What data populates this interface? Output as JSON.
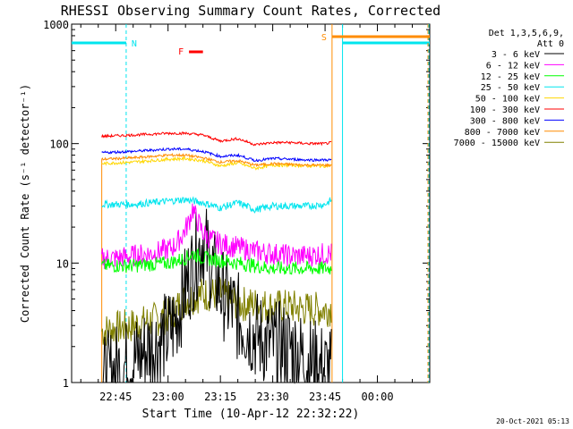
{
  "chart_data": {
    "type": "line",
    "title": "RHESSI Observing Summary Count Rates, Corrected",
    "xlabel": "Start Time (10-Apr-12 22:32:22)",
    "ylabel": "Corrected Count Rate (s⁻¹ detector⁻¹)",
    "y_scale": "log",
    "ylim": [
      1,
      1000
    ],
    "xlim": [
      "22:32:22",
      "00:15"
    ],
    "x_ticks": [
      "22:45",
      "23:00",
      "23:15",
      "23:30",
      "23:45",
      "00:00"
    ],
    "y_ticks": [
      "1",
      "10",
      "100",
      "1000"
    ],
    "legend_header": [
      "Det 1,3,5,6,9,",
      "Att 0"
    ],
    "legend_placement": "top-right",
    "footer_date": "20-Oct-2021 05:13",
    "flags": [
      {
        "letter": "N",
        "color": "#00e5ee",
        "desc": "night segments",
        "segments": [
          [
            "22:32:22",
            "22:48"
          ],
          [
            "23:50",
            "00:15"
          ]
        ]
      },
      {
        "letter": "S",
        "color": "#ff8c00",
        "desc": "SAA",
        "segments": [
          [
            "23:47",
            "00:15"
          ]
        ]
      },
      {
        "letter": "F",
        "color": "#ff0000",
        "desc": "flare",
        "segments": [
          [
            "23:06",
            "23:10"
          ]
        ]
      }
    ],
    "data_start": "22:41",
    "data_end": "23:47",
    "series": [
      {
        "name": "3 - 6 keV",
        "color": "#000000",
        "x": [
          "22:41",
          "22:45",
          "22:50",
          "22:55",
          "23:00",
          "23:02",
          "23:04",
          "23:06",
          "23:08",
          "23:10",
          "23:12",
          "23:15",
          "23:20",
          "23:25",
          "23:30",
          "23:35",
          "23:40",
          "23:45",
          "23:47"
        ],
        "y": [
          1,
          1.3,
          1.5,
          2,
          2.5,
          3.2,
          5,
          7.5,
          11,
          16,
          10,
          6,
          3.5,
          2.5,
          2,
          2,
          1.5,
          1.3,
          1.2
        ]
      },
      {
        "name": "6 - 12 keV",
        "color": "#ff00ff",
        "x": [
          "22:41",
          "22:45",
          "22:50",
          "22:55",
          "23:00",
          "23:02",
          "23:04",
          "23:06",
          "23:07",
          "23:08",
          "23:10",
          "23:12",
          "23:15",
          "23:20",
          "23:25",
          "23:30",
          "23:35",
          "23:40",
          "23:45",
          "23:47"
        ],
        "y": [
          11,
          11,
          11.5,
          12,
          13,
          14,
          17,
          22,
          29,
          24,
          18,
          16,
          14.5,
          13.5,
          12.5,
          12,
          11.5,
          11.5,
          12,
          12
        ]
      },
      {
        "name": "12 - 25 keV",
        "color": "#00ff00",
        "x": [
          "22:41",
          "22:50",
          "23:00",
          "23:05",
          "23:07",
          "23:10",
          "23:15",
          "23:20",
          "23:30",
          "23:40",
          "23:47"
        ],
        "y": [
          9.5,
          9.5,
          10,
          11,
          12,
          11,
          10.5,
          10,
          9,
          9,
          9
        ]
      },
      {
        "name": "25 - 50 keV",
        "color": "#00e5ee",
        "x": [
          "22:41",
          "22:50",
          "23:00",
          "23:05",
          "23:10",
          "23:15",
          "23:20",
          "23:25",
          "23:30",
          "23:35",
          "23:40",
          "23:45",
          "23:47"
        ],
        "y": [
          31,
          31,
          33,
          34,
          32,
          29,
          32,
          28,
          30,
          30,
          30,
          31,
          34
        ]
      },
      {
        "name": "50 - 100 keV",
        "color": "#ffd700",
        "x": [
          "22:41",
          "22:50",
          "23:00",
          "23:05",
          "23:10",
          "23:15",
          "23:20",
          "23:25",
          "23:30",
          "23:35",
          "23:40",
          "23:45",
          "23:47"
        ],
        "y": [
          68,
          70,
          74,
          75,
          72,
          65,
          69,
          62,
          66,
          66,
          65,
          65,
          66
        ]
      },
      {
        "name": "100 - 300 keV",
        "color": "#ff0000",
        "x": [
          "22:41",
          "22:50",
          "23:00",
          "23:05",
          "23:10",
          "23:15",
          "23:20",
          "23:25",
          "23:30",
          "23:35",
          "23:40",
          "23:45",
          "23:47"
        ],
        "y": [
          115,
          118,
          122,
          122,
          118,
          105,
          110,
          98,
          102,
          102,
          100,
          100,
          102
        ]
      },
      {
        "name": "300 - 800 keV",
        "color": "#0000ff",
        "x": [
          "22:41",
          "22:50",
          "23:00",
          "23:05",
          "23:10",
          "23:15",
          "23:20",
          "23:25",
          "23:30",
          "23:35",
          "23:40",
          "23:45",
          "23:47"
        ],
        "y": [
          84,
          86,
          90,
          90,
          86,
          78,
          80,
          72,
          75,
          74,
          73,
          73,
          73
        ]
      },
      {
        "name": "800 - 7000 keV",
        "color": "#ff8c00",
        "x": [
          "22:41",
          "22:50",
          "23:00",
          "23:05",
          "23:10",
          "23:15",
          "23:20",
          "23:25",
          "23:30",
          "23:35",
          "23:40",
          "23:45",
          "23:47"
        ],
        "y": [
          74,
          76,
          80,
          80,
          76,
          70,
          72,
          66,
          68,
          67,
          66,
          66,
          66
        ]
      },
      {
        "name": "7000 - 15000 keV",
        "color": "#808000",
        "x": [
          "22:41",
          "22:50",
          "23:00",
          "23:05",
          "23:10",
          "23:15",
          "23:20",
          "23:25",
          "23:30",
          "23:35",
          "23:40",
          "23:45",
          "23:47"
        ],
        "y": [
          2.7,
          3,
          3.6,
          5,
          5.5,
          5.5,
          4.6,
          4.5,
          4.3,
          4.3,
          4.1,
          4.1,
          4.2
        ]
      }
    ]
  }
}
